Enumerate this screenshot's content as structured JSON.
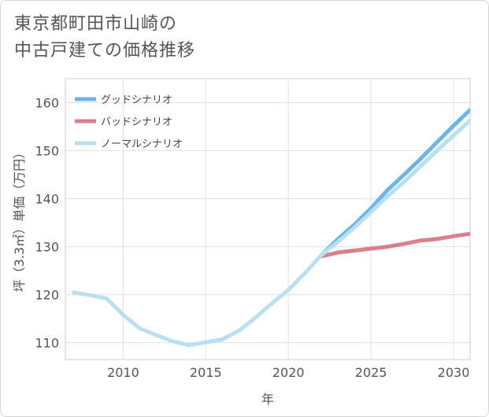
{
  "title_lines": [
    "東京都町田市山崎の",
    "中古戸建ての価格推移"
  ],
  "chart_data": {
    "type": "line",
    "xlabel": "年",
    "ylabel": "坪（3.3㎡）単価（万円）",
    "xlim": [
      2006.5,
      2031
    ],
    "ylim": [
      106.5,
      165
    ],
    "xticks": [
      2010,
      2015,
      2020,
      2025,
      2030
    ],
    "yticks": [
      110,
      120,
      130,
      140,
      150,
      160
    ],
    "grid": true,
    "legend_position": "top-left",
    "series": [
      {
        "name": "ノーマルシナリオ",
        "color": "#b9e0f2",
        "x": [
          2007,
          2008,
          2009,
          2010,
          2011,
          2012,
          2013,
          2014,
          2015,
          2016,
          2017,
          2018,
          2019,
          2020,
          2021,
          2022,
          2023,
          2024,
          2025,
          2026,
          2027,
          2028,
          2029,
          2030,
          2031
        ],
        "values": [
          120.5,
          119.9,
          119.2,
          115.8,
          113.0,
          111.6,
          110.3,
          109.5,
          110.1,
          110.7,
          112.5,
          115.2,
          118.2,
          121.0,
          124.5,
          128.3,
          131.0,
          134.0,
          137.2,
          140.5,
          143.5,
          146.8,
          150.0,
          153.2,
          156.3
        ]
      },
      {
        "name": "グッドシナリオ",
        "color": "#6ab6ea",
        "x": [
          2022,
          2023,
          2024,
          2025,
          2026,
          2027,
          2028,
          2029,
          2030,
          2031
        ],
        "values": [
          128.3,
          131.6,
          134.6,
          138.0,
          141.8,
          145.0,
          148.3,
          151.8,
          155.2,
          158.5
        ]
      },
      {
        "name": "バッドシナリオ",
        "color": "#db8088",
        "x": [
          2022,
          2023,
          2024,
          2025,
          2026,
          2027,
          2028,
          2029,
          2030,
          2031
        ],
        "values": [
          128.0,
          128.8,
          129.2,
          129.6,
          130.0,
          130.6,
          131.3,
          131.6,
          132.2,
          132.7
        ]
      }
    ],
    "legend_order": [
      "グッドシナリオ",
      "バッドシナリオ",
      "ノーマルシナリオ"
    ]
  }
}
